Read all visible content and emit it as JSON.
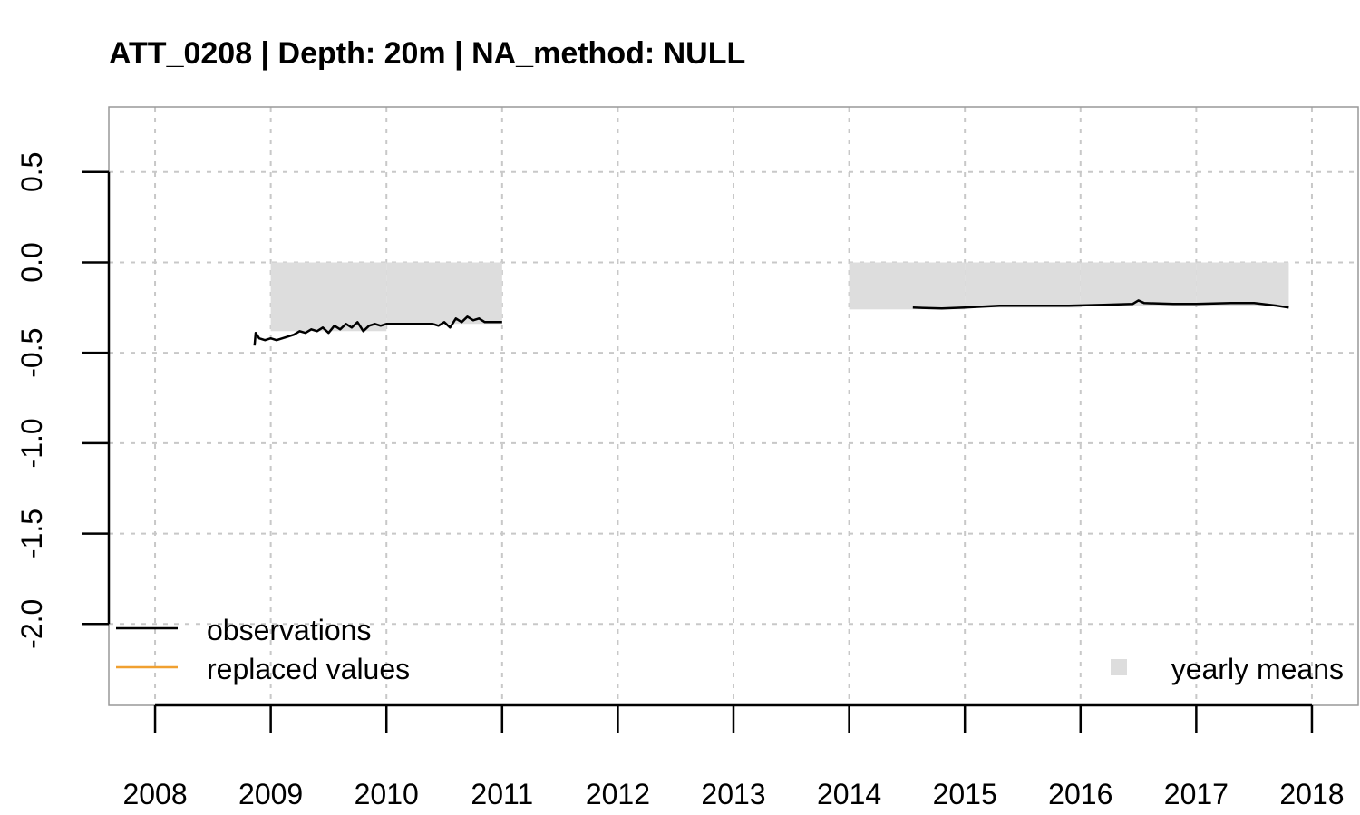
{
  "chart_data": {
    "type": "line",
    "title": "ATT_0208 | Depth: 20m | NA_method: NULL",
    "xlabel": "",
    "ylabel": "",
    "xlim": [
      2007.6,
      2018.4
    ],
    "ylim": [
      -2.45,
      0.86
    ],
    "x_ticks": [
      2008,
      2009,
      2010,
      2011,
      2012,
      2013,
      2014,
      2015,
      2016,
      2017,
      2018
    ],
    "x_tick_labels": [
      "2008",
      "2009",
      "2010",
      "2011",
      "2012",
      "2013",
      "2014",
      "2015",
      "2016",
      "2017",
      "2018"
    ],
    "y_ticks": [
      0.5,
      0.0,
      -0.5,
      -1.0,
      -1.5,
      -2.0
    ],
    "y_tick_labels": [
      "0.5",
      "0.0",
      "-0.5",
      "-1.0",
      "-1.5",
      "-2.0"
    ],
    "grid": true,
    "yearly_means": [
      {
        "x_start": 2009.0,
        "x_end": 2010.0,
        "value": -0.38
      },
      {
        "x_start": 2010.0,
        "x_end": 2011.0,
        "value": -0.34
      },
      {
        "x_start": 2014.0,
        "x_end": 2015.0,
        "value": -0.26
      },
      {
        "x_start": 2015.0,
        "x_end": 2016.0,
        "value": -0.25
      },
      {
        "x_start": 2016.0,
        "x_end": 2017.0,
        "value": -0.24
      },
      {
        "x_start": 2017.0,
        "x_end": 2017.8,
        "value": -0.24
      }
    ],
    "series": [
      {
        "name": "observations",
        "color": "#000000",
        "segments": [
          {
            "x": [
              2008.86,
              2008.87,
              2008.9,
              2008.95,
              2009.0,
              2009.05,
              2009.1,
              2009.15,
              2009.2,
              2009.25,
              2009.3,
              2009.35,
              2009.4,
              2009.45,
              2009.5,
              2009.55,
              2009.6,
              2009.65,
              2009.7,
              2009.75,
              2009.8,
              2009.85,
              2009.9,
              2009.95,
              2010.0,
              2010.1,
              2010.2,
              2010.3,
              2010.4,
              2010.45,
              2010.5,
              2010.55,
              2010.6,
              2010.65,
              2010.7,
              2010.75,
              2010.8,
              2010.85,
              2010.9,
              2011.0
            ],
            "y": [
              -0.46,
              -0.39,
              -0.42,
              -0.43,
              -0.42,
              -0.43,
              -0.42,
              -0.41,
              -0.4,
              -0.38,
              -0.39,
              -0.37,
              -0.38,
              -0.36,
              -0.39,
              -0.35,
              -0.37,
              -0.34,
              -0.36,
              -0.33,
              -0.38,
              -0.35,
              -0.34,
              -0.35,
              -0.34,
              -0.34,
              -0.34,
              -0.34,
              -0.34,
              -0.35,
              -0.33,
              -0.36,
              -0.31,
              -0.33,
              -0.3,
              -0.32,
              -0.31,
              -0.33,
              -0.33,
              -0.33
            ]
          },
          {
            "x": [
              2014.55,
              2014.8,
              2015.0,
              2015.3,
              2015.6,
              2015.9,
              2016.2,
              2016.45,
              2016.5,
              2016.55,
              2016.8,
              2017.0,
              2017.3,
              2017.5,
              2017.7,
              2017.8
            ],
            "y": [
              -0.25,
              -0.255,
              -0.25,
              -0.24,
              -0.24,
              -0.24,
              -0.235,
              -0.23,
              -0.21,
              -0.225,
              -0.23,
              -0.23,
              -0.225,
              -0.225,
              -0.24,
              -0.25
            ]
          }
        ]
      },
      {
        "name": "replaced values",
        "color": "#f0a030",
        "segments": []
      }
    ],
    "legend": {
      "placement": "bottom-left",
      "items": [
        {
          "label": "observations",
          "color": "#000000"
        },
        {
          "label": "replaced values",
          "color": "#f0a030"
        }
      ],
      "means_item": {
        "label": "yearly means",
        "color": "#dddddd",
        "placement": "bottom-right"
      }
    }
  }
}
